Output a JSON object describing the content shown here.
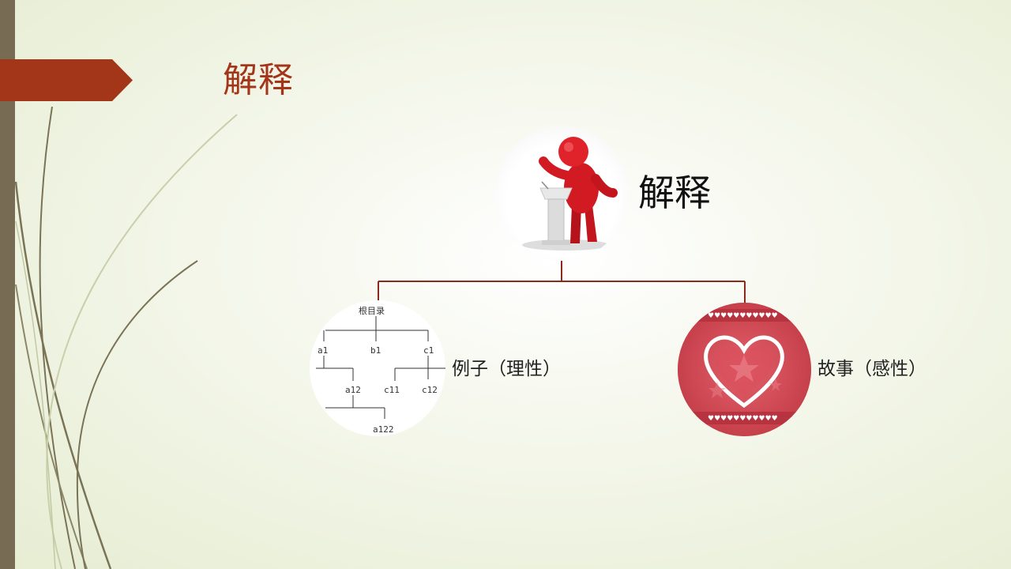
{
  "slide": {
    "title": "解释",
    "colors": {
      "accent": "#a33519",
      "left_bar": "#776b53",
      "connector": "#8b2a1d",
      "heart_bg": "#d0474f"
    }
  },
  "diagram": {
    "root": {
      "label": "解释",
      "icon": "speaker-at-podium-icon"
    },
    "children": [
      {
        "label": "例子（理性）",
        "icon": "directory-tree-icon",
        "tree": {
          "root": "根目录",
          "level1": [
            "a1",
            "b1",
            "c1"
          ],
          "level2": [
            "a12",
            "c11",
            "c12"
          ],
          "level3": [
            "a122"
          ]
        }
      },
      {
        "label": "故事（感性）",
        "icon": "heart-icon"
      }
    ]
  }
}
